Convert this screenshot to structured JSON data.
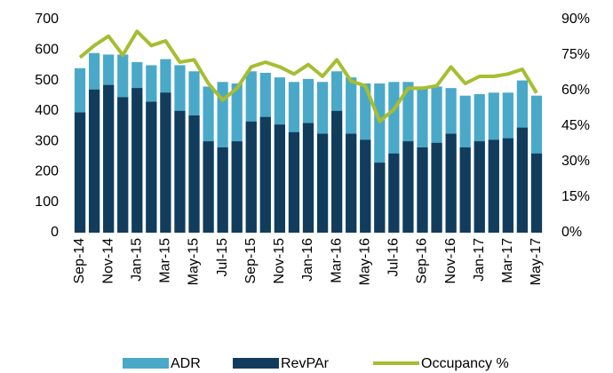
{
  "chart_data": {
    "type": "bar",
    "categories": [
      "Sep-14",
      null,
      "Nov-14",
      null,
      "Jan-15",
      null,
      "Mar-15",
      null,
      "May-15",
      null,
      "Jul-15",
      null,
      "Sep-15",
      null,
      "Nov-15",
      null,
      "Jan-16",
      null,
      "Mar-16",
      null,
      "May-16",
      null,
      "Jul-16",
      null,
      "Sep-16",
      null,
      "Nov-16",
      null,
      "Jan-17",
      null,
      "Mar-17",
      null,
      "May-17"
    ],
    "series": [
      {
        "name": "ADR",
        "type": "bar",
        "color": "#4aa9c8",
        "values": [
          540,
          590,
          585,
          585,
          560,
          550,
          570,
          550,
          530,
          480,
          495,
          490,
          530,
          525,
          510,
          495,
          505,
          495,
          530,
          510,
          490,
          490,
          495,
          495,
          480,
          480,
          475,
          450,
          455,
          460,
          460,
          500,
          450
        ]
      },
      {
        "name": "RevPAr",
        "type": "bar",
        "color": "#123c5c",
        "values": [
          395,
          470,
          485,
          445,
          475,
          430,
          460,
          400,
          385,
          300,
          280,
          300,
          365,
          380,
          355,
          330,
          360,
          325,
          400,
          325,
          305,
          230,
          260,
          300,
          280,
          295,
          325,
          280,
          300,
          305,
          310,
          345,
          260
        ]
      },
      {
        "name": "Occupancy %",
        "type": "line",
        "axis": "y2",
        "color": "#a7bd32",
        "values": [
          74,
          79,
          83,
          75,
          85,
          79,
          81,
          72,
          73,
          63,
          56,
          61,
          70,
          72,
          70,
          67,
          71,
          66,
          73,
          64,
          62,
          47,
          52,
          61,
          61,
          62,
          70,
          63,
          66,
          66,
          67,
          69,
          59
        ]
      }
    ],
    "ylim": [
      0,
      700
    ],
    "yticks": [
      0,
      100,
      200,
      300,
      400,
      500,
      600,
      700
    ],
    "y2lim": [
      0,
      90
    ],
    "y2ticks": [
      {
        "value": 0,
        "label": "0%"
      },
      {
        "value": 15,
        "label": "15%"
      },
      {
        "value": 30,
        "label": "30%"
      },
      {
        "value": 45,
        "label": "45%"
      },
      {
        "value": 60,
        "label": "60%"
      },
      {
        "value": 75,
        "label": "75%"
      },
      {
        "value": 90,
        "label": "90%"
      }
    ],
    "legend": "bottom"
  }
}
